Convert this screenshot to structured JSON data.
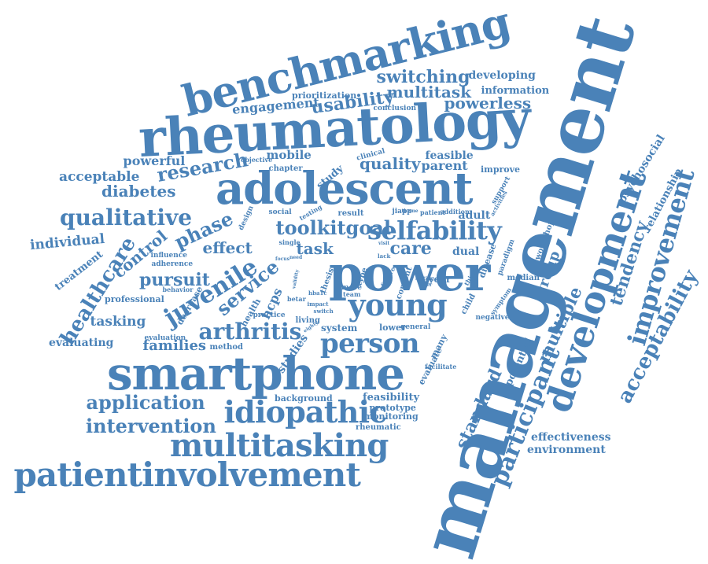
{
  "color": "#4a82b8",
  "words": [
    {
      "text": "management"
    },
    {
      "text": "rheumatology"
    },
    {
      "text": "benchmarking"
    },
    {
      "text": "adolescent"
    },
    {
      "text": "smartphone"
    },
    {
      "text": "power"
    },
    {
      "text": "patientinvolvement"
    },
    {
      "text": "development"
    },
    {
      "text": "multitasking"
    },
    {
      "text": "young"
    },
    {
      "text": "idiopathic"
    },
    {
      "text": "person"
    },
    {
      "text": "improvement"
    },
    {
      "text": "qualitative"
    },
    {
      "text": "participant"
    },
    {
      "text": "acceptability"
    },
    {
      "text": "intervention"
    },
    {
      "text": "application"
    },
    {
      "text": "juvenile"
    },
    {
      "text": "arthritis"
    },
    {
      "text": "service"
    },
    {
      "text": "healthcare"
    },
    {
      "text": "standard"
    },
    {
      "text": "multiple"
    },
    {
      "text": "selfability"
    },
    {
      "text": "toolkitgoal"
    },
    {
      "text": "research"
    },
    {
      "text": "switching"
    },
    {
      "text": "multitask"
    },
    {
      "text": "usability"
    },
    {
      "text": "powerless"
    },
    {
      "text": "diabetes"
    },
    {
      "text": "phase"
    },
    {
      "text": "effect"
    },
    {
      "text": "pursuit"
    },
    {
      "text": "task"
    },
    {
      "text": "care"
    },
    {
      "text": "quality"
    },
    {
      "text": "tendency"
    },
    {
      "text": "families"
    },
    {
      "text": "control"
    },
    {
      "text": "individual"
    },
    {
      "text": "tasking"
    },
    {
      "text": "group"
    },
    {
      "text": "engagement"
    },
    {
      "text": "acceptable"
    },
    {
      "text": "powerful"
    },
    {
      "text": "treatment"
    },
    {
      "text": "relationship"
    },
    {
      "text": "psychosocial"
    },
    {
      "text": "effectiveness"
    },
    {
      "text": "environment"
    },
    {
      "text": "developing"
    },
    {
      "text": "information"
    },
    {
      "text": "prioritization"
    },
    {
      "text": "parent"
    },
    {
      "text": "mobile"
    },
    {
      "text": "feasible"
    },
    {
      "text": "adult"
    },
    {
      "text": "evaluating"
    },
    {
      "text": "professional"
    },
    {
      "text": "hcps"
    },
    {
      "text": "dual"
    },
    {
      "text": "potential"
    },
    {
      "text": "feasibility"
    },
    {
      "text": "prototype"
    },
    {
      "text": "monitoring"
    },
    {
      "text": "rheumatic"
    },
    {
      "text": "background"
    },
    {
      "text": "studies"
    },
    {
      "text": "system"
    },
    {
      "text": "lower"
    },
    {
      "text": "general"
    },
    {
      "text": "median"
    },
    {
      "text": "workshop"
    },
    {
      "text": "improve"
    },
    {
      "text": "chapter"
    },
    {
      "text": "study"
    },
    {
      "text": "clinical"
    },
    {
      "text": "conclusion"
    },
    {
      "text": "objective"
    },
    {
      "text": "social"
    },
    {
      "text": "testing"
    },
    {
      "text": "result"
    },
    {
      "text": "jiapp"
    },
    {
      "text": "design"
    },
    {
      "text": "influence"
    },
    {
      "text": "adherence"
    },
    {
      "text": "behavior"
    },
    {
      "text": "evaluation"
    },
    {
      "text": "method"
    },
    {
      "text": "decrease"
    },
    {
      "text": "health"
    },
    {
      "text": "practice"
    },
    {
      "text": "living"
    },
    {
      "text": "year"
    },
    {
      "text": "negative"
    },
    {
      "text": "many"
    },
    {
      "text": "evaluate"
    },
    {
      "text": "facilitate"
    },
    {
      "text": "child"
    },
    {
      "text": "disease"
    },
    {
      "text": "paradigm"
    },
    {
      "text": "symptom"
    },
    {
      "text": "thing"
    },
    {
      "text": "support"
    },
    {
      "text": "activities"
    },
    {
      "text": "addition"
    },
    {
      "text": "patient"
    },
    {
      "text": "theme"
    },
    {
      "text": "content"
    },
    {
      "text": "type"
    },
    {
      "text": "more"
    },
    {
      "text": "team"
    },
    {
      "text": "thesis"
    },
    {
      "text": "future"
    },
    {
      "text": "single"
    },
    {
      "text": "betar"
    },
    {
      "text": "hba1c"
    },
    {
      "text": "impact"
    },
    {
      "text": "switch"
    },
    {
      "text": "focus"
    },
    {
      "text": "eighty"
    },
    {
      "text": "lack"
    },
    {
      "text": "validity"
    },
    {
      "text": "need"
    },
    {
      "text": "setting"
    },
    {
      "text": "user"
    },
    {
      "text": "visit"
    }
  ]
}
